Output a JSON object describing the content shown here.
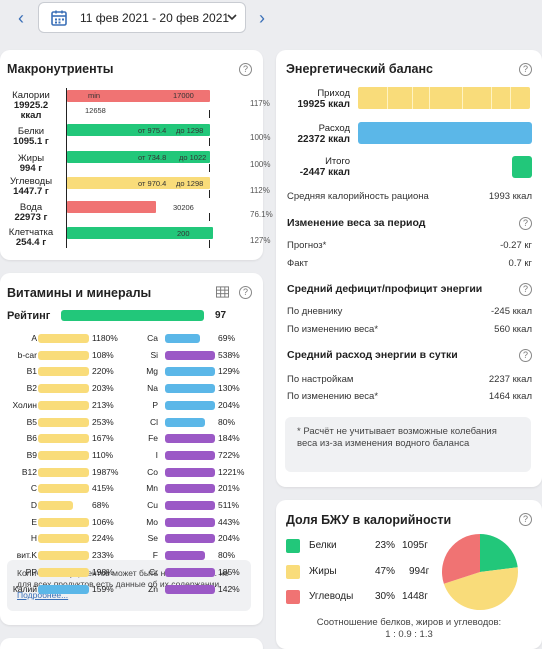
{
  "period": {
    "label": "11 фев 2021 - 20 фев 2021"
  },
  "macro": {
    "title": "Макронутриенты",
    "rows": [
      {
        "name": "Калории",
        "value": "19925.2",
        "unit": "ккал",
        "pct": "117%",
        "note1": "min",
        "note2": "17000",
        "note3": "12658"
      },
      {
        "name": "Белки",
        "value": "1095.1 г",
        "pct": "100%",
        "note1": "от 975.4",
        "note2": "до 1298"
      },
      {
        "name": "Жиры",
        "value": "994 г",
        "pct": "100%",
        "note1": "от 734.8",
        "note2": "до 1022"
      },
      {
        "name": "Углеводы",
        "value": "1447.7 г",
        "pct": "112%",
        "note1": "от 970.4",
        "note2": "до 1298"
      },
      {
        "name": "Вода",
        "value": "22973 г",
        "pct": "76.1%",
        "note2": "30206"
      },
      {
        "name": "Клетчатка",
        "value": "254.4 г",
        "pct": "127%",
        "note2": "200"
      }
    ]
  },
  "vitamins": {
    "title": "Витамины и минералы",
    "rating_label": "Рейтинг",
    "rating": "97",
    "left": [
      {
        "name": "A",
        "pct": "1180%",
        "fill": 1.0
      },
      {
        "name": "b-car",
        "pct": "108%",
        "fill": 1.0
      },
      {
        "name": "B1",
        "pct": "220%",
        "fill": 1.0
      },
      {
        "name": "B2",
        "pct": "203%",
        "fill": 1.0
      },
      {
        "name": "Холин",
        "pct": "213%",
        "fill": 1.0
      },
      {
        "name": "B5",
        "pct": "253%",
        "fill": 1.0
      },
      {
        "name": "B6",
        "pct": "167%",
        "fill": 1.0
      },
      {
        "name": "B9",
        "pct": "110%",
        "fill": 1.0
      },
      {
        "name": "B12",
        "pct": "1987%",
        "fill": 1.0
      },
      {
        "name": "C",
        "pct": "415%",
        "fill": 1.0
      },
      {
        "name": "D",
        "pct": "68%",
        "fill": 0.68
      },
      {
        "name": "E",
        "pct": "106%",
        "fill": 1.0
      },
      {
        "name": "H",
        "pct": "224%",
        "fill": 1.0
      },
      {
        "name": "вит.K",
        "pct": "233%",
        "fill": 1.0
      },
      {
        "name": "PP",
        "pct": "198%",
        "fill": 1.0
      },
      {
        "name": "Калий",
        "pct": "159%",
        "fill": 1.0
      }
    ],
    "right": [
      {
        "name": "Ca",
        "pct": "69%",
        "fill": 0.69
      },
      {
        "name": "Si",
        "pct": "538%",
        "fill": 1.0
      },
      {
        "name": "Mg",
        "pct": "129%",
        "fill": 1.0
      },
      {
        "name": "Na",
        "pct": "130%",
        "fill": 1.0
      },
      {
        "name": "P",
        "pct": "204%",
        "fill": 1.0
      },
      {
        "name": "Cl",
        "pct": "80%",
        "fill": 0.8
      },
      {
        "name": "Fe",
        "pct": "184%",
        "fill": 1.0
      },
      {
        "name": "I",
        "pct": "722%",
        "fill": 1.0
      },
      {
        "name": "Co",
        "pct": "1221%",
        "fill": 1.0
      },
      {
        "name": "Mn",
        "pct": "201%",
        "fill": 1.0
      },
      {
        "name": "Cu",
        "pct": "511%",
        "fill": 1.0
      },
      {
        "name": "Mo",
        "pct": "443%",
        "fill": 1.0
      },
      {
        "name": "Se",
        "pct": "204%",
        "fill": 1.0
      },
      {
        "name": "F",
        "pct": "80%",
        "fill": 0.8
      },
      {
        "name": "Cr",
        "pct": "185%",
        "fill": 1.0
      },
      {
        "name": "Zn",
        "pct": "142%",
        "fill": 1.0
      }
    ],
    "note": "Количество нутриентов может быть неполным, т.к. не для всех продуктов есть данные об их содержании.",
    "more_link": "Подробнее..."
  },
  "energy": {
    "title": "Энергетический баланс",
    "income_label": "Приход",
    "income_value": "19925 ккал",
    "expense_label": "Расход",
    "expense_value": "22372 ккал",
    "total_label": "Итого",
    "total_value": "-2447 ккал",
    "avg_label": "Средняя калорийность рациона",
    "avg_value": "1993 ккал",
    "weight_head": "Изменение веса за период",
    "forecast_label": "Прогноз*",
    "forecast_value": "-0.27 кг",
    "fact_label": "Факт",
    "fact_value": "0.7 кг",
    "deficit_head": "Средний дефицит/профицит энергии",
    "diary_label": "По дневнику",
    "diary_value": "-245 ккал",
    "byweight_label": "По изменению веса*",
    "byweight_value": "560 ккал",
    "spend_head": "Средний расход энергии в сутки",
    "settings_label": "По настройкам",
    "settings_value": "2237 ккал",
    "byweight2_label": "По изменению веса*",
    "byweight2_value": "1464 ккал",
    "footnote": "* Расчёт не учитывает возможные колебания веса из-за изменения водного баланса"
  },
  "bju": {
    "title": "Доля БЖУ в калорийности",
    "items": [
      {
        "name": "Белки",
        "pct": "23%",
        "grams": "1095г",
        "color": "#22c77a"
      },
      {
        "name": "Жиры",
        "pct": "47%",
        "grams": "994г",
        "color": "#f9dc7a"
      },
      {
        "name": "Углеводы",
        "pct": "30%",
        "grams": "1448г",
        "color": "#f07373"
      }
    ],
    "shares": [
      0.23,
      0.47,
      0.3
    ],
    "ratio_label": "Соотношение белков, жиров и углеводов:",
    "ratio_value": "1 : 0.9 : 1.3"
  },
  "colors": {
    "green": "#22c77a",
    "yellow": "#f9dc7a",
    "red": "#f07373",
    "blue": "#5bb7e8",
    "purple": "#9b59c6",
    "accent": "#3a6fb7"
  }
}
